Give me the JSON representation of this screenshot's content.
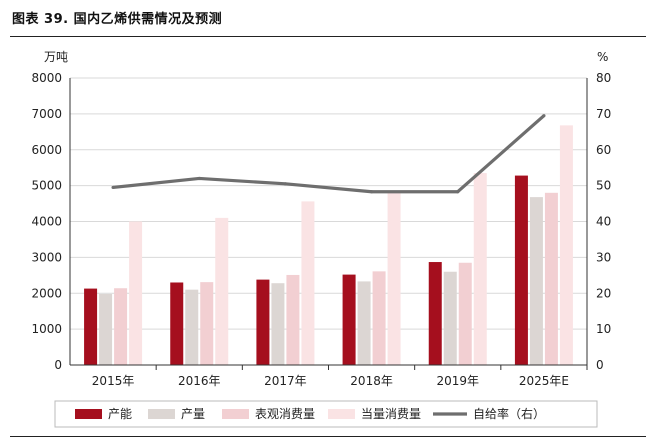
{
  "figure": {
    "title": "图表 39. 国内乙烯供需情况及预测"
  },
  "colors": {
    "capacity": "#a50f1e",
    "output": "#dcd6d3",
    "apparent": "#f2cfd2",
    "equivalent": "#fae3e4",
    "self_sufficiency": "#6e6e6e",
    "grid": "#d9d9d9",
    "axis": "#333333"
  },
  "chart_data": {
    "type": "bar",
    "title": "",
    "categories": [
      "2015年",
      "2016年",
      "2017年",
      "2018年",
      "2019年",
      "2025年E"
    ],
    "y_left_unit": "万吨",
    "y_right_unit": "%",
    "y_left_lim": [
      0,
      8000
    ],
    "y_left_ticks": [
      0,
      1000,
      2000,
      3000,
      4000,
      5000,
      6000,
      7000,
      8000
    ],
    "y_right_lim": [
      0,
      80
    ],
    "y_right_ticks": [
      0,
      10,
      20,
      30,
      40,
      50,
      60,
      70,
      80
    ],
    "grid": true,
    "legend_position": "bottom",
    "series": [
      {
        "name": "产能",
        "type": "bar",
        "axis": "left",
        "color_key": "capacity",
        "values": [
          2130,
          2300,
          2380,
          2520,
          2870,
          5280
        ]
      },
      {
        "name": "产量",
        "type": "bar",
        "axis": "left",
        "color_key": "output",
        "values": [
          1980,
          2100,
          2280,
          2330,
          2600,
          4680
        ]
      },
      {
        "name": "表观消费量",
        "type": "bar",
        "axis": "left",
        "color_key": "apparent",
        "values": [
          2140,
          2310,
          2510,
          2610,
          2850,
          4800
        ]
      },
      {
        "name": "当量消费量",
        "type": "bar",
        "axis": "left",
        "color_key": "equivalent",
        "values": [
          4000,
          4100,
          4560,
          4820,
          5350,
          6680
        ]
      },
      {
        "name": "自给率（右）",
        "type": "line",
        "axis": "right",
        "color_key": "self_sufficiency",
        "values": [
          49.5,
          52,
          50.5,
          48.3,
          48.3,
          69.5
        ]
      }
    ],
    "legend_labels": [
      "产能",
      "产量",
      "表观消费量",
      "当量消费量",
      "自给率（右）"
    ]
  }
}
